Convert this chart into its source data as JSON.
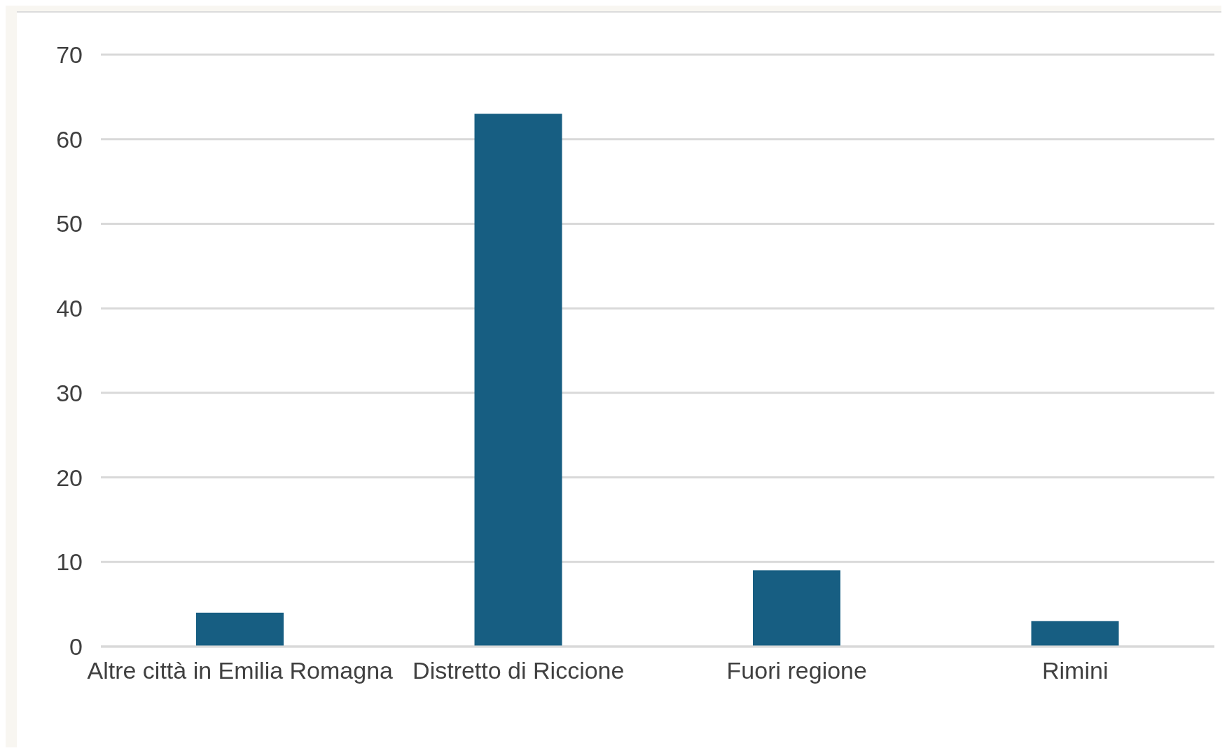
{
  "chart_data": {
    "type": "bar",
    "categories": [
      "Altre città in Emilia Romagna",
      "Distretto di Riccione",
      "Fuori regione",
      "Rimini"
    ],
    "values": [
      4,
      63,
      9,
      3
    ],
    "color": "#175e82",
    "ylim": [
      0,
      70
    ],
    "yticks": [
      0,
      10,
      20,
      30,
      40,
      50,
      60,
      70
    ],
    "grid": "y"
  }
}
